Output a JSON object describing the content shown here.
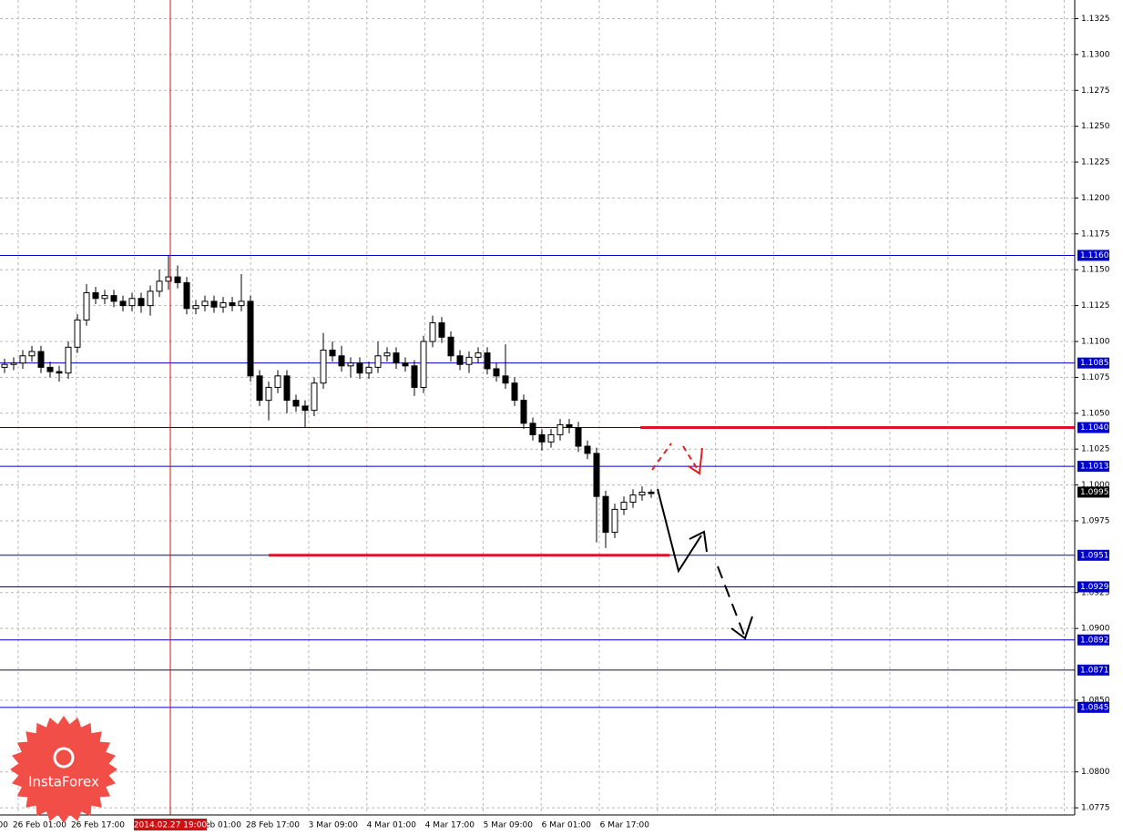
{
  "chart_data": {
    "type": "candlestick",
    "ylim": [
      1.077,
      1.1338
    ],
    "yticks": [
      1.1325,
      {
        "value": 1.13,
        "label": "1.1300"
      },
      1.1275,
      {
        "value": 1.125,
        "label": "1.1250"
      },
      1.1225,
      {
        "value": 1.12,
        "label": "1.1200"
      },
      1.1175,
      {
        "value": 1.115,
        "label": "1.1150"
      },
      1.1125,
      {
        "value": 1.11,
        "label": "1.1100"
      },
      1.1075,
      {
        "value": 1.105,
        "label": "1.1050"
      },
      1.1025,
      {
        "value": 1.1,
        "label": "1.1000"
      },
      1.0975,
      1.0925,
      {
        "value": 1.09,
        "label": "1.0900"
      },
      {
        "value": 1.085,
        "label": "1.0850"
      },
      {
        "value": 1.08,
        "label": "1.0800"
      },
      1.0775
    ],
    "grid": true,
    "x_labels": [
      "00",
      "26 Feb 01:00",
      "26 Feb 17:00",
      null,
      "Feb 01:00",
      "28 Feb 17:00",
      "3 Mar 09:00",
      "4 Mar 01:00",
      "4 Mar 17:00",
      "5 Mar 09:00",
      "6 Mar 01:00",
      "6 Mar 17:00"
    ],
    "crosshair_label": "2014.02.27 19:00",
    "open": [
      1.1082,
      1.1084,
      1.1085,
      1.109,
      1.1093,
      1.1082,
      1.1079,
      1.1078,
      1.1096,
      1.1115,
      1.1134,
      1.113,
      1.1132,
      1.1128,
      1.1125,
      1.113,
      1.1125,
      1.1135,
      1.1142,
      1.1145,
      1.1141,
      1.1123,
      1.1125,
      1.1128,
      1.1124,
      1.1127,
      1.1125,
      1.1128,
      1.1076,
      1.1059,
      1.1068,
      1.1076,
      1.1059,
      1.1055,
      1.1052,
      1.1071,
      1.1094,
      1.109,
      1.1083,
      1.1085,
      1.1078,
      1.1082,
      1.109,
      1.1092,
      1.1085,
      1.1083,
      1.1068,
      1.11,
      1.1113,
      1.1103,
      1.109,
      1.1084,
      1.1089,
      1.1092,
      1.1081,
      1.1076,
      1.1071,
      1.1059,
      1.1043,
      1.1035,
      1.103,
      1.1035,
      1.1042,
      1.104,
      1.1027,
      1.1022,
      1.0992,
      1.0967,
      1.0983,
      1.0988,
      1.0993,
      1.0995
    ],
    "high": [
      1.1088,
      1.1089,
      1.1094,
      1.1097,
      1.1097,
      1.1086,
      1.1083,
      1.11,
      1.1119,
      1.114,
      1.1138,
      1.1136,
      1.1136,
      1.1132,
      1.1134,
      1.1134,
      1.1139,
      1.115,
      1.116,
      1.1153,
      1.1145,
      1.1129,
      1.1132,
      1.1132,
      1.1131,
      1.1131,
      1.1147,
      1.1132,
      1.108,
      1.1072,
      1.108,
      1.108,
      1.1063,
      1.1059,
      1.1075,
      1.1106,
      1.11,
      1.1097,
      1.1089,
      1.1089,
      1.1086,
      1.11,
      1.1096,
      1.1096,
      1.1089,
      1.1087,
      1.1104,
      1.1118,
      1.1117,
      1.1107,
      1.1094,
      1.1093,
      1.1096,
      1.1096,
      1.1085,
      1.1098,
      1.1075,
      1.1063,
      1.1047,
      1.1039,
      1.1039,
      1.1046,
      1.1046,
      1.1044,
      1.1031,
      1.1026,
      1.0996,
      1.0987,
      1.0992,
      1.0997,
      1.0999,
      1.0997
    ],
    "low": [
      1.1078,
      1.108,
      1.1081,
      1.1086,
      1.1078,
      1.1075,
      1.1072,
      1.1074,
      1.1092,
      1.1111,
      1.1126,
      1.1126,
      1.1124,
      1.1121,
      1.1121,
      1.112,
      1.1118,
      1.1131,
      1.1136,
      1.1137,
      1.1119,
      1.1119,
      1.1121,
      1.112,
      1.112,
      1.1121,
      1.1121,
      1.1072,
      1.1055,
      1.1045,
      1.1064,
      1.105,
      1.1051,
      1.104,
      1.1048,
      1.1067,
      1.1086,
      1.1079,
      1.1075,
      1.1074,
      1.1074,
      1.1078,
      1.1086,
      1.1081,
      1.1079,
      1.1062,
      1.1064,
      1.1096,
      1.1099,
      1.1086,
      1.108,
      1.1078,
      1.1085,
      1.1077,
      1.1072,
      1.1067,
      1.1055,
      1.1039,
      1.1031,
      1.1024,
      1.1026,
      1.1031,
      1.1036,
      1.1023,
      1.1018,
      1.096,
      1.0956,
      1.0963,
      1.0979,
      1.0984,
      1.0989,
      1.0991
    ],
    "close": [
      1.1084,
      1.1085,
      1.109,
      1.1093,
      1.1082,
      1.1079,
      1.1078,
      1.1096,
      1.1115,
      1.1134,
      1.113,
      1.1132,
      1.1128,
      1.1125,
      1.113,
      1.1125,
      1.1135,
      1.1142,
      1.1145,
      1.1141,
      1.1123,
      1.1125,
      1.1128,
      1.1124,
      1.1127,
      1.1125,
      1.1128,
      1.1076,
      1.1059,
      1.1068,
      1.1076,
      1.1059,
      1.1055,
      1.1052,
      1.1071,
      1.1094,
      1.109,
      1.1083,
      1.1085,
      1.1078,
      1.1082,
      1.109,
      1.1092,
      1.1085,
      1.1083,
      1.1068,
      1.11,
      1.1113,
      1.1103,
      1.109,
      1.1084,
      1.1089,
      1.1092,
      1.1081,
      1.1076,
      1.1071,
      1.1059,
      1.1043,
      1.1035,
      1.103,
      1.1035,
      1.1042,
      1.104,
      1.1027,
      1.1022,
      1.0992,
      1.0967,
      1.0983,
      1.0988,
      1.0993,
      1.0995,
      1.0994
    ],
    "levels": [
      {
        "value": 1.116,
        "label": "1.1160",
        "color": "#0000cc"
      },
      {
        "value": 1.1085,
        "label": "1.1085",
        "color": "#0000cc"
      },
      {
        "value": 1.104,
        "label": "1.1040",
        "color": "#0000cc"
      },
      {
        "value": 1.1013,
        "label": "1.1013",
        "color": "#0000cc"
      },
      {
        "value": 1.0951,
        "label": "1.0951",
        "color": "#0000cc"
      },
      {
        "value": 1.0929,
        "label": "1.0929",
        "color": "#101040"
      },
      {
        "value": 1.0892,
        "label": "1.0892",
        "color": "#0000cc"
      },
      {
        "value": 1.0871,
        "label": "1.0871",
        "color": "#101040"
      },
      {
        "value": 1.0845,
        "label": "1.0845",
        "color": "#0000cc"
      }
    ],
    "current_price": 1.0995,
    "red_lines": [
      1.104,
      1.0951
    ],
    "logo_text": "InstaForex"
  }
}
